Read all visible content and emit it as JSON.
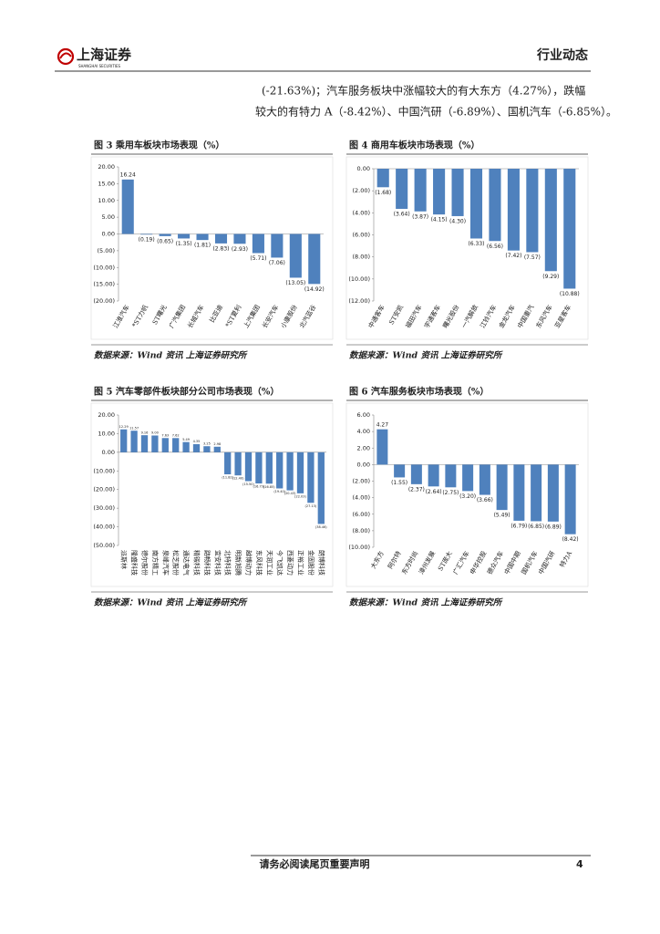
{
  "header": {
    "logo": "上海证券",
    "logo_en": "SHANGHAI SECURITIES",
    "section": "行业动态"
  },
  "paragraph": [
    "(-21.63%)；汽车服务板块中涨幅较大的有大东方（4.27%），跌幅",
    "较大的有特力 A（-8.42%）、中国汽研（-6.89%）、国机汽车（-6.85%）。"
  ],
  "chart_data": [
    {
      "type": "bar",
      "title": "图 3 乘用车板块市场表现（%）",
      "source": "数据来源：Wind 资讯 上海证券研究所",
      "color": "#4f81bd",
      "negative_label_color": "#c00000",
      "categories": [
        "江淮汽车",
        "*ST力帆",
        "ST曙光",
        "广汽集团",
        "长城汽车",
        "比亚迪",
        "*ST夏利",
        "上汽集团",
        "长安汽车",
        "小康股份",
        "北汽蓝谷"
      ],
      "values": [
        16.24,
        -0.19,
        -0.65,
        -1.35,
        -1.81,
        -2.83,
        -2.93,
        -5.71,
        -7.06,
        -13.05,
        -14.92
      ],
      "value_labels": [
        "16.24",
        "(0.19)",
        "(0.65)",
        "(1.35)",
        "(1.81)",
        "(2.83)",
        "(2.93)",
        "(5.71)",
        "(7.06)",
        "(13.05)",
        "(14.92)"
      ],
      "ylim": [
        -20,
        20
      ],
      "yticks": [
        {
          "value": 20,
          "label": "20.00"
        },
        {
          "value": 15,
          "label": "15.00"
        },
        {
          "value": 10,
          "label": "10.00"
        },
        {
          "value": 5,
          "label": "5.00"
        },
        {
          "value": 0,
          "label": "0.00"
        },
        {
          "value": -5,
          "label": "(5.00)"
        },
        {
          "value": -10,
          "label": "(10.00)"
        },
        {
          "value": -15,
          "label": "(15.00)"
        },
        {
          "value": -20,
          "label": "(20.00)"
        }
      ]
    },
    {
      "type": "bar",
      "title": "图 4 商用车板块市场表现（%）",
      "source": "数据来源：Wind 资讯 上海证券研究所",
      "color": "#4f81bd",
      "negative_label_color": "#c00000",
      "categories": [
        "中通客车",
        "ST安凯",
        "福田汽车",
        "宇通客车",
        "曙光股份",
        "一汽解放",
        "江铃汽车",
        "金龙汽车",
        "中国重汽",
        "东风汽车",
        "亚星客车"
      ],
      "values": [
        -1.68,
        -3.64,
        -3.87,
        -4.15,
        -4.3,
        -6.33,
        -6.56,
        -7.42,
        -7.57,
        -9.29,
        -10.88
      ],
      "value_labels": [
        "(1.68)",
        "(3.64)",
        "(3.87)",
        "(4.15)",
        "(4.30)",
        "(6.33)",
        "(6.56)",
        "(7.42)",
        "(7.57)",
        "(9.29)",
        "(10.88)"
      ],
      "ylim": [
        -12,
        0
      ],
      "yticks": [
        {
          "value": 0,
          "label": "0.00"
        },
        {
          "value": -2,
          "label": "(2.00)"
        },
        {
          "value": -4,
          "label": "(4.00)"
        },
        {
          "value": -6,
          "label": "(6.00)"
        },
        {
          "value": -8,
          "label": "(8.00)"
        },
        {
          "value": -10,
          "label": "(10.00)"
        },
        {
          "value": -12,
          "label": "(12.00)"
        }
      ]
    },
    {
      "type": "bar",
      "title": "图 5 汽车零部件板块部分公司市场表现（%）",
      "source": "数据来源：Wind 资讯 上海证券研究所",
      "color": "#4f81bd",
      "negative_label_color": "#c00000",
      "categories": [
        "派斯林",
        "隆盛科技",
        "德尔股份",
        "南方精工",
        "泉峰汽车",
        "松芝股份",
        "通达电气",
        "精锻科技",
        "路畅科技",
        "宜安科技",
        "北特科技",
        "明新旭腾",
        "越博动力",
        "东风科技",
        "天润工业",
        "今飞凯达",
        "西菱动力",
        "正裕工业",
        "金固股份",
        "朗博科技"
      ],
      "values": [
        12.29,
        11.57,
        9.16,
        9.0,
        7.63,
        7.62,
        5.49,
        4.35,
        3.25,
        2.98,
        -11.82,
        -12.4,
        -15.5,
        -16.73,
        -16.85,
        -19.4,
        -20.43,
        -22.03,
        -27.13,
        -38.46
      ],
      "value_labels": [
        "12.29",
        "11.57",
        "9.16",
        "9.00",
        "7.63",
        "7.62",
        "5.49",
        "4.35",
        "3.25",
        "2.98",
        "(11.82)",
        "(12.40)",
        "(15.50)",
        "(16.73)",
        "(16.85)",
        "(19.40)",
        "(20.43)",
        "(22.03)",
        "(27.13)",
        "(38.46)"
      ],
      "ylim": [
        -50,
        20
      ],
      "yticks": [
        {
          "value": 20,
          "label": "20.00"
        },
        {
          "value": 10,
          "label": "10.00"
        },
        {
          "value": 0,
          "label": "0.00"
        },
        {
          "value": -10,
          "label": "(10.00)"
        },
        {
          "value": -20,
          "label": "(20.00)"
        },
        {
          "value": -30,
          "label": "(30.00)"
        },
        {
          "value": -40,
          "label": "(40.00)"
        },
        {
          "value": -50,
          "label": "(50.00)"
        }
      ]
    },
    {
      "type": "bar",
      "title": "图 6 汽车服务板块市场表现（%）",
      "source": "数据来源：Wind 资讯 上海证券研究所",
      "color": "#4f81bd",
      "negative_label_color": "#c00000",
      "categories": [
        "大东方",
        "阿尔特",
        "东方时尚",
        "漳州发展",
        "ST庞大",
        "广汇汽车",
        "申华控股",
        "德众汽车",
        "中国中期",
        "国机汽车",
        "中国汽研",
        "特力A"
      ],
      "values": [
        4.27,
        -1.55,
        -2.37,
        -2.64,
        -2.75,
        -3.2,
        -3.66,
        -5.49,
        -6.79,
        -6.85,
        -6.89,
        -8.42
      ],
      "value_labels": [
        "4.27",
        "(1.55)",
        "(2.37)",
        "(2.64)",
        "(2.75)",
        "(3.20)",
        "(3.66)",
        "(5.49)",
        "(6.79)",
        "(6.85)",
        "(6.89)",
        "(8.42)"
      ],
      "ylim": [
        -10,
        6
      ],
      "yticks": [
        {
          "value": 6,
          "label": "6.00"
        },
        {
          "value": 4,
          "label": "4.00"
        },
        {
          "value": 2,
          "label": "2.00"
        },
        {
          "value": 0,
          "label": "0.00"
        },
        {
          "value": -2,
          "label": "(2.00)"
        },
        {
          "value": -4,
          "label": "(4.00)"
        },
        {
          "value": -6,
          "label": "(6.00)"
        },
        {
          "value": -8,
          "label": "(8.00)"
        },
        {
          "value": -10,
          "label": "(10.00)"
        }
      ]
    }
  ],
  "footer": {
    "notice": "请务必阅读尾页重要声明",
    "page": "4"
  }
}
